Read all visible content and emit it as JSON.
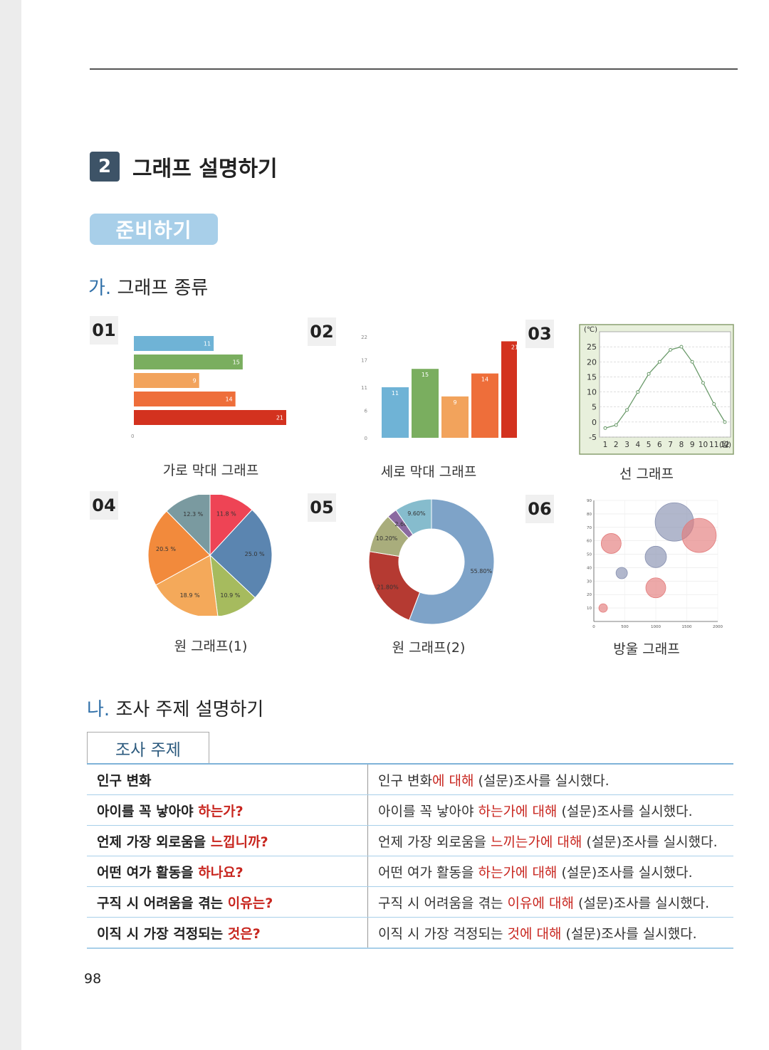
{
  "section": {
    "number": "2",
    "title": "그래프 설명하기"
  },
  "prep_label": "준비하기",
  "part_a": {
    "mark": "가.",
    "title": "그래프 종류"
  },
  "part_b": {
    "mark": "나.",
    "title": "조사 주제 설명하기"
  },
  "graphs": [
    {
      "num": "01",
      "caption": "가로 막대 그래프"
    },
    {
      "num": "02",
      "caption": "세로 막대 그래프"
    },
    {
      "num": "03",
      "caption": "선 그래프"
    },
    {
      "num": "04",
      "caption": "원 그래프(1)"
    },
    {
      "num": "05",
      "caption": "원 그래프(2)"
    },
    {
      "num": "06",
      "caption": "방울 그래프"
    }
  ],
  "chart_data": [
    {
      "type": "bar",
      "orientation": "horizontal",
      "values": [
        11,
        15,
        9,
        14,
        21
      ],
      "colors": [
        "#6fb3d6",
        "#7aae5f",
        "#f2a35c",
        "#ee6e3a",
        "#d3321f"
      ],
      "axis_min_label": "0"
    },
    {
      "type": "bar",
      "orientation": "vertical",
      "values": [
        11,
        15,
        9,
        14,
        21
      ],
      "colors": [
        "#6fb3d6",
        "#7aae5f",
        "#f2a35c",
        "#ee6e3a",
        "#d3321f"
      ],
      "y_ticks": [
        "22",
        "17",
        "11",
        "6",
        "0"
      ],
      "ylim": [
        0,
        22
      ]
    },
    {
      "type": "line",
      "unit_label": "(℃)",
      "x_unit": "(월)",
      "x": [
        "1",
        "2",
        "3",
        "4",
        "5",
        "6",
        "7",
        "8",
        "9",
        "10",
        "11",
        "12"
      ],
      "values": [
        -2,
        -1,
        4,
        10,
        16,
        20,
        24,
        25,
        20,
        13,
        6,
        0
      ],
      "y_ticks": [
        "25",
        "20",
        "15",
        "10",
        "5",
        "0",
        "-5"
      ],
      "ylim": [
        -5,
        30
      ],
      "background": "#e8f0dc"
    },
    {
      "type": "pie",
      "labels": [
        "11.8 %",
        "25.0 %",
        "10.9 %",
        "18.9 %",
        "20.5 %",
        "12.3 %"
      ],
      "values": [
        11.8,
        25.0,
        10.9,
        18.9,
        20.5,
        12.3
      ],
      "colors": [
        "#ee4455",
        "#5b85b0",
        "#a6bb5e",
        "#f4a95a",
        "#f28a3c",
        "#7a9aa0"
      ]
    },
    {
      "type": "pie",
      "variant": "donut",
      "labels": [
        "55.80%",
        "21.80%",
        "10.20%",
        "2.60%",
        "9.60%"
      ],
      "values": [
        55.8,
        21.8,
        10.2,
        2.6,
        9.6
      ],
      "colors": [
        "#7ea3c8",
        "#b53a32",
        "#a9ad7c",
        "#8a6aa0",
        "#86bccd"
      ]
    },
    {
      "type": "scatter",
      "variant": "bubble",
      "x_ticks": [
        "0",
        "500",
        "1000",
        "1500",
        "2000"
      ],
      "y_ticks": [
        "90",
        "80",
        "70",
        "60",
        "50",
        "40",
        "30",
        "20",
        "10"
      ],
      "xlim": [
        0,
        2000
      ],
      "ylim": [
        0,
        90
      ],
      "points": [
        {
          "x": 150,
          "y": 10,
          "size": 6,
          "color": "#e37b7b"
        },
        {
          "x": 280,
          "y": 58,
          "size": 14,
          "color": "#e37b7b"
        },
        {
          "x": 450,
          "y": 36,
          "size": 8,
          "color": "#8790b0"
        },
        {
          "x": 1000,
          "y": 48,
          "size": 15,
          "color": "#8790b0"
        },
        {
          "x": 1000,
          "y": 25,
          "size": 14,
          "color": "#e37b7b"
        },
        {
          "x": 1300,
          "y": 74,
          "size": 27,
          "color": "#8790b0"
        },
        {
          "x": 1700,
          "y": 64,
          "size": 24,
          "color": "#e37b7b"
        }
      ]
    }
  ],
  "survey": {
    "tab_label": "조사 주제",
    "rows": [
      {
        "q_plain": "인구 변화",
        "q_hl": "",
        "a_pre": "인구 변화",
        "a_hl": "에 대해",
        "a_post": " (설문)조사를 실시했다."
      },
      {
        "q_plain": "아이를 꼭 낳아야 ",
        "q_hl": "하는가?",
        "a_pre": "아이를 꼭 낳아야 ",
        "a_hl": "하는가에 대해",
        "a_post": " (설문)조사를 실시했다."
      },
      {
        "q_plain": "언제 가장 외로움을 ",
        "q_hl": "느낍니까?",
        "a_pre": "언제 가장 외로움을 ",
        "a_hl": "느끼는가에 대해",
        "a_post": " (설문)조사를 실시했다."
      },
      {
        "q_plain": "어떤 여가 활동을 ",
        "q_hl": "하나요?",
        "a_pre": "어떤 여가 활동을 ",
        "a_hl": "하는가에 대해",
        "a_post": " (설문)조사를 실시했다."
      },
      {
        "q_plain": "구직 시 어려움을 겪는 ",
        "q_hl": "이유는?",
        "a_pre": "구직 시 어려움을 겪는 ",
        "a_hl": "이유에 대해",
        "a_post": " (설문)조사를 실시했다."
      },
      {
        "q_plain": "이직 시 가장 걱정되는 ",
        "q_hl": "것은?",
        "a_pre": "이직 시 가장 걱정되는 ",
        "a_hl": "것에 대해",
        "a_post": " (설문)조사를 실시했다."
      }
    ]
  },
  "page_number": "98"
}
